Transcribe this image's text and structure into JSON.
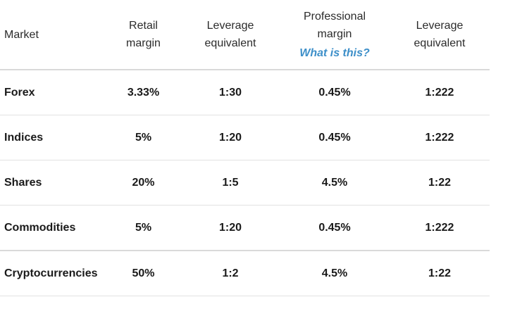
{
  "header": {
    "market": "Market",
    "retail_margin": [
      "Retail",
      "margin"
    ],
    "leverage_1": [
      "Leverage",
      "equivalent"
    ],
    "professional_margin": [
      "Professional",
      "margin"
    ],
    "what_is_this": "What is this?",
    "leverage_2": [
      "Leverage",
      "equivalent"
    ]
  },
  "rows": [
    {
      "market": "Forex",
      "retail_margin": "3.33%",
      "leverage_retail": "1:30",
      "professional_margin": "0.45%",
      "leverage_professional": "1:222"
    },
    {
      "market": "Indices",
      "retail_margin": "5%",
      "leverage_retail": "1:20",
      "professional_margin": "0.45%",
      "leverage_professional": "1:222"
    },
    {
      "market": "Shares",
      "retail_margin": "20%",
      "leverage_retail": "1:5",
      "professional_margin": "4.5%",
      "leverage_professional": "1:22"
    },
    {
      "market": "Commodities",
      "retail_margin": "5%",
      "leverage_retail": "1:20",
      "professional_margin": "0.45%",
      "leverage_professional": "1:222"
    },
    {
      "market": "Cryptocurrencies",
      "retail_margin": "50%",
      "leverage_retail": "1:2",
      "professional_margin": "4.5%",
      "leverage_professional": "1:22"
    }
  ],
  "colors": {
    "link": "#3d8fc9",
    "divider": "#d9d9d9"
  }
}
